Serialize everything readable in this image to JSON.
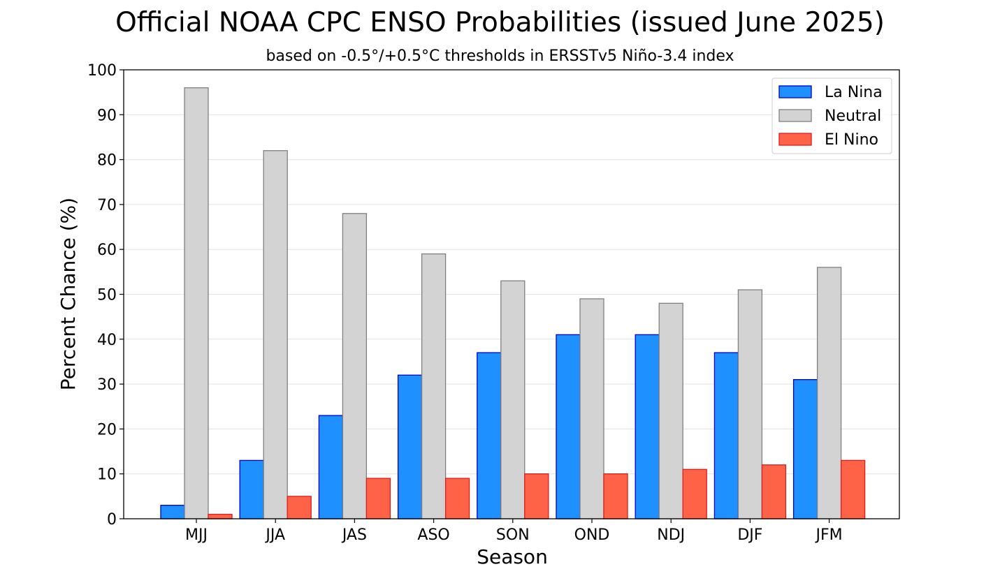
{
  "chart_data": {
    "type": "bar",
    "title": "Official NOAA CPC ENSO Probabilities (issued June 2025)",
    "subtitle": "based on -0.5°/+0.5°C thresholds in ERSSTv5 Niño-3.4 index",
    "xlabel": "Season",
    "ylabel": "Percent Chance (%)",
    "ylim": [
      0,
      100
    ],
    "yticks": [
      0,
      10,
      20,
      30,
      40,
      50,
      60,
      70,
      80,
      90,
      100
    ],
    "grid": "horizontal",
    "legend_position": "top-right",
    "categories": [
      "MJJ",
      "JJA",
      "JAS",
      "ASO",
      "SON",
      "OND",
      "NDJ",
      "DJF",
      "JFM"
    ],
    "series": [
      {
        "name": "La Nina",
        "color": "#1e90ff",
        "edge": "#0000cd",
        "values": [
          3,
          13,
          23,
          32,
          37,
          41,
          41,
          37,
          31
        ]
      },
      {
        "name": "Neutral",
        "color": "#d3d3d3",
        "edge": "#808080",
        "values": [
          96,
          82,
          68,
          59,
          53,
          49,
          48,
          51,
          56
        ]
      },
      {
        "name": "El Nino",
        "color": "#ff6347",
        "edge": "#dc1e1e",
        "values": [
          1,
          5,
          9,
          9,
          10,
          10,
          11,
          12,
          13
        ]
      }
    ]
  }
}
